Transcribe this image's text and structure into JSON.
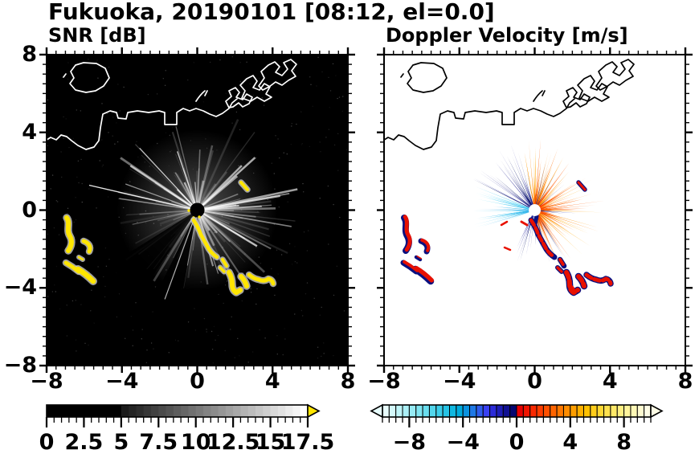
{
  "title": "Fukuoka, 20190101 [08:12, el=0.0]",
  "station": "Fukuoka",
  "date": "20190101",
  "time": "08:12",
  "elevation": "0.0",
  "panels": {
    "snr": {
      "label": "SNR [dB]",
      "xticks": [
        "−8",
        "−4",
        "0",
        "4",
        "8"
      ],
      "xtick_values": [
        -8,
        -4,
        0,
        4,
        8
      ],
      "yticks": [
        "8",
        "4",
        "0",
        "−4",
        "−8"
      ],
      "ytick_values": [
        8,
        4,
        0,
        -4,
        -8
      ],
      "background": "#000000",
      "coast_color": "#ffffff",
      "echo_yellow": "#ffe600",
      "echo_halo": "#c8c8c8",
      "streak_color": "#ffffff",
      "colorbar": {
        "tick_labels": [
          "0",
          "2.5",
          "5",
          "7.5",
          "10",
          "12.5",
          "15",
          "17.5"
        ],
        "tick_values": [
          0,
          2.5,
          5,
          7.5,
          10,
          12.5,
          15,
          17.5
        ],
        "min": 0,
        "max": 17.5,
        "minor_step": 0.5,
        "major_step": 2.5,
        "over_arrow_color": "#ffe600",
        "cells": [
          "#000000",
          "#000000",
          "#000000",
          "#000000",
          "#000000",
          "#000000",
          "#000000",
          "#000000",
          "#000000",
          "#000000",
          "#1a1a1a",
          "#242424",
          "#2d2d2d",
          "#373737",
          "#404040",
          "#4a4a4a",
          "#535353",
          "#5d5d5d",
          "#666666",
          "#707070",
          "#797979",
          "#838383",
          "#8c8c8c",
          "#969696",
          "#a0a0a0",
          "#a9a9a9",
          "#b3b3b3",
          "#bcbcbc",
          "#c6c6c6",
          "#cfcfcf",
          "#d9d9d9",
          "#e2e2e2",
          "#ececec",
          "#f5f5f5",
          "#ffffff"
        ]
      }
    },
    "doppler": {
      "label": "Doppler Velocity [m/s]",
      "xticks": [
        "−8",
        "−4",
        "0",
        "4",
        "8"
      ],
      "xtick_values": [
        -8,
        -4,
        0,
        4,
        8
      ],
      "background": "#ffffff",
      "coast_color": "#000000",
      "echo_navy": "#0a1080",
      "echo_red": "#e81000",
      "white_hole": "#ffffff",
      "orange_palette": [
        "#e84200",
        "#ff3d00",
        "#ff5a00",
        "#ff6d00",
        "#ff8000",
        "#ff9300",
        "#ffa500"
      ],
      "cyan_palette": [
        "#a5f0fb",
        "#74e2f8",
        "#4bd0f3",
        "#27bcec",
        "#86dff6",
        "#2e9fe8"
      ],
      "navy_palette": [
        "#000d62",
        "#101287",
        "#1a1a9e"
      ],
      "colorbar": {
        "tick_labels": [
          "−8",
          "−4",
          "0",
          "4",
          "8"
        ],
        "tick_values": [
          -8,
          -4,
          0,
          4,
          8
        ],
        "min": -10,
        "max": 10,
        "minor_step": 0.5,
        "major_step": 4,
        "cells": [
          "#e8fdfd",
          "#d4f9fb",
          "#c0f5f9",
          "#abf0f7",
          "#96ebf5",
          "#80e5f2",
          "#69deef",
          "#52d6ec",
          "#3bcde9",
          "#25c3e5",
          "#10b8e1",
          "#00abdc",
          "#0b93e0",
          "#1e78e6",
          "#2e5cec",
          "#3940f2",
          "#2b2bd8",
          "#1d1db6",
          "#101092",
          "#060670",
          "#e60000",
          "#ef1400",
          "#f82800",
          "#ff3c00",
          "#ff5000",
          "#ff6400",
          "#ff7800",
          "#ff8c00",
          "#ff9e00",
          "#ffb000",
          "#ffc000",
          "#ffcd1a",
          "#ffd834",
          "#ffe14e",
          "#ffe968",
          "#ffef82",
          "#fff49c",
          "#fff8b6",
          "#fffbd0",
          "#fffde6"
        ]
      }
    }
  },
  "chart_data": [
    {
      "type": "heatmap",
      "title": "SNR [dB]",
      "xlabel": "",
      "ylabel": "",
      "xlim": [
        -8,
        8
      ],
      "ylim": [
        -8,
        8
      ],
      "xticks": [
        -8,
        -4,
        0,
        4,
        8
      ],
      "yticks": [
        -8,
        -4,
        0,
        4,
        8
      ],
      "minor_tick_step": 0.5,
      "grid": false,
      "background": "#000000",
      "legend_position": "none",
      "colorbar": {
        "orientation": "horizontal",
        "range": [
          0,
          17.5
        ],
        "ticks": [
          0,
          2.5,
          5,
          7.5,
          10,
          12.5,
          15,
          17.5
        ],
        "colormap": "grayscale black to white, values below 5 dB black, yellow overflow arrow at right"
      },
      "features": [
        "radar at origin (0,0): black center hole with gray radial beam streaks extending roughly 2-5 km, brightest toward the N through E sectors, with two black shadow wedges toward SSW",
        "high-SNR yellow (>17.5 dB) echo chain running southeast from the radar center to about (4,-4)",
        "isolated yellow echo arcs with gray halos between (-7.5,-0.5) and (-5.5,-3.5)",
        "short yellow slash echo near (2.5,1.2)",
        "coastline drawn in white on black: round island near (-6,6.5), mainland shore crossing the panel near y=4..5, square river notch near (-1.5,5), jagged harbor piers near (1..3.5, 6..7.5), small islet mark near (0.2,5.9)"
      ]
    },
    {
      "type": "heatmap",
      "title": "Doppler Velocity [m/s]",
      "xlabel": "",
      "ylabel": "",
      "xlim": [
        -8,
        8
      ],
      "ylim": [
        -8,
        8
      ],
      "xticks": [
        -8,
        -4,
        0,
        4,
        8
      ],
      "yticks": [
        -8,
        -4,
        0,
        4,
        8
      ],
      "minor_tick_step": 0.5,
      "grid": false,
      "background": "#ffffff",
      "legend_position": "none",
      "colorbar": {
        "orientation": "horizontal",
        "range": [
          -10,
          10
        ],
        "ticks": [
          -8,
          -4,
          0,
          4,
          8
        ],
        "colormap": "diverging discrete: pale cyan → cyan → blue → navy for negative, red → orange → yellow → pale yellow for positive, arrows on both ends"
      },
      "features": [
        "white data hole at radar center (0,0)",
        "spiky fan of positive velocities (red near center to orange outward, ~1-6 m/s) covering N through E to SE of the radar",
        "clusters of navy (strong negative / aliased) spikes NW and S of the radar",
        "light-cyan fan (about -6 to -9 m/s) pointing W-WSW from the center",
        "echo chain southeast of the radar rendered navy with red patches, ending near (4,-4)",
        "red arcs with navy edges between (-7.5,-0.5) and (-5.5,-3.5), matching the SNR yellow arcs",
        "same coastline as left panel drawn in black on white"
      ]
    }
  ]
}
